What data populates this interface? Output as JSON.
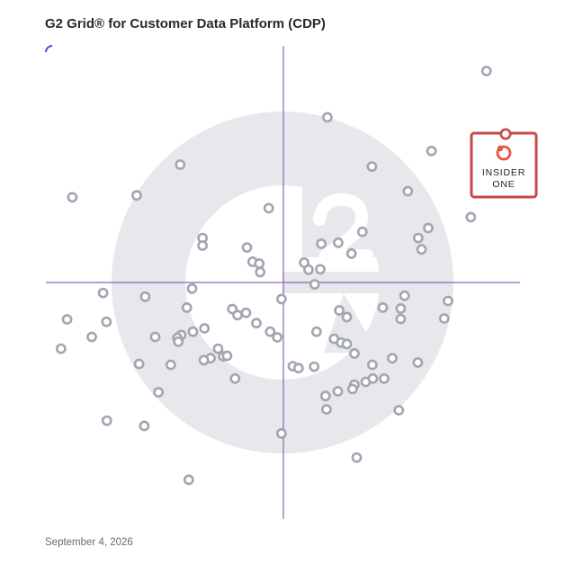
{
  "page": {
    "title": "G2 Grid® for Customer Data Platform (CDP)",
    "date": "September 4, 2026"
  },
  "colors": {
    "frame_gradient": [
      "#4f4fd1",
      "#7b3fb3",
      "#b23a6e",
      "#e0503a",
      "#2e9fd6",
      "#8a3fb5"
    ],
    "divider": "#8c63b8",
    "dot_stroke": "#a3a5b0",
    "watermark": "#e7e8eb",
    "highlight_border": "#c24a48",
    "highlight_logo": "#e9543b"
  },
  "highlight": {
    "label": "INSIDER ONE",
    "label_lines": [
      "INSIDER",
      "ONE"
    ],
    "logo_icon": "insider-logo-icon"
  },
  "chart_data": {
    "type": "scatter",
    "title": "G2 Grid® for Customer Data Platform (CDP)",
    "xlabel": "",
    "ylabel": "",
    "xlim": [
      0,
      100
    ],
    "ylim": [
      0,
      100
    ],
    "quadrant_dividers": {
      "x": 50,
      "y": 50
    },
    "grid": false,
    "legend": "none",
    "points": [
      [
        92.9,
        94.7
      ],
      [
        59.3,
        84.9
      ],
      [
        81.3,
        77.8
      ],
      [
        28.2,
        74.9
      ],
      [
        68.7,
        74.5
      ],
      [
        5.4,
        68.0
      ],
      [
        19.0,
        68.4
      ],
      [
        76.3,
        69.3
      ],
      [
        46.9,
        65.7
      ],
      [
        89.6,
        63.8
      ],
      [
        66.7,
        60.7
      ],
      [
        80.6,
        61.5
      ],
      [
        78.5,
        59.4
      ],
      [
        32.9,
        59.4
      ],
      [
        32.9,
        57.8
      ],
      [
        58.0,
        58.2
      ],
      [
        61.6,
        58.4
      ],
      [
        42.3,
        57.4
      ],
      [
        79.2,
        57.0
      ],
      [
        64.4,
        56.1
      ],
      [
        43.5,
        54.4
      ],
      [
        44.9,
        54.0
      ],
      [
        54.4,
        54.2
      ],
      [
        55.3,
        52.7
      ],
      [
        57.8,
        52.8
      ],
      [
        45.1,
        52.2
      ],
      [
        56.6,
        49.6
      ],
      [
        30.7,
        48.7
      ],
      [
        11.9,
        47.8
      ],
      [
        20.8,
        47.0
      ],
      [
        75.6,
        47.2
      ],
      [
        49.6,
        46.5
      ],
      [
        71.0,
        44.7
      ],
      [
        74.8,
        44.5
      ],
      [
        84.8,
        46.1
      ],
      [
        29.6,
        44.7
      ],
      [
        39.2,
        44.4
      ],
      [
        40.3,
        43.1
      ],
      [
        61.8,
        44.1
      ],
      [
        42.1,
        43.6
      ],
      [
        63.4,
        42.7
      ],
      [
        4.3,
        42.2
      ],
      [
        12.6,
        41.7
      ],
      [
        74.8,
        42.3
      ],
      [
        84.0,
        42.4
      ],
      [
        44.3,
        41.4
      ],
      [
        33.3,
        40.3
      ],
      [
        30.9,
        39.6
      ],
      [
        47.2,
        39.6
      ],
      [
        28.4,
        38.9
      ],
      [
        48.7,
        38.4
      ],
      [
        57.0,
        39.6
      ],
      [
        60.7,
        38.1
      ],
      [
        62.2,
        37.3
      ],
      [
        63.4,
        37.0
      ],
      [
        9.5,
        38.5
      ],
      [
        22.9,
        38.5
      ],
      [
        27.6,
        38.3
      ],
      [
        27.8,
        37.5
      ],
      [
        3.0,
        36.0
      ],
      [
        36.2,
        36.0
      ],
      [
        65.0,
        35.0
      ],
      [
        73.0,
        34.0
      ],
      [
        34.6,
        34.0
      ],
      [
        37.3,
        34.4
      ],
      [
        38.1,
        34.5
      ],
      [
        33.2,
        33.6
      ],
      [
        19.5,
        32.8
      ],
      [
        26.2,
        32.6
      ],
      [
        52.0,
        32.3
      ],
      [
        53.2,
        31.9
      ],
      [
        56.5,
        32.2
      ],
      [
        68.8,
        32.6
      ],
      [
        78.4,
        33.1
      ],
      [
        39.8,
        29.7
      ],
      [
        67.4,
        29.0
      ],
      [
        68.9,
        29.7
      ],
      [
        65.0,
        28.4
      ],
      [
        71.3,
        29.7
      ],
      [
        23.6,
        26.8
      ],
      [
        58.9,
        26.0
      ],
      [
        61.5,
        27.0
      ],
      [
        64.6,
        27.5
      ],
      [
        74.4,
        23.0
      ],
      [
        59.1,
        23.2
      ],
      [
        12.7,
        20.8
      ],
      [
        20.6,
        19.7
      ],
      [
        49.6,
        18.1
      ],
      [
        65.5,
        13.0
      ],
      [
        30.0,
        8.3
      ]
    ],
    "highlighted_point": {
      "label": "INSIDER ONE",
      "x": 97.0,
      "y": 81.0
    }
  }
}
